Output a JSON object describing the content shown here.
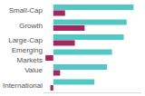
{
  "chart_data": {
    "type": "bar",
    "orientation": "horizontal",
    "categories": [
      "Small-Cap",
      "Growth",
      "Large-Cap",
      "Emerging Markets",
      "Value",
      "International"
    ],
    "series": [
      {
        "color": "#52c7c4",
        "values": [
          82,
          75,
          72,
          60,
          55,
          42
        ]
      },
      {
        "color": "#a3285e",
        "values": [
          12,
          32,
          22,
          -8,
          7,
          -3
        ]
      }
    ],
    "xlim": [
      -10,
      90
    ],
    "xticks": [],
    "grid": false,
    "tick_labels": "y"
  }
}
